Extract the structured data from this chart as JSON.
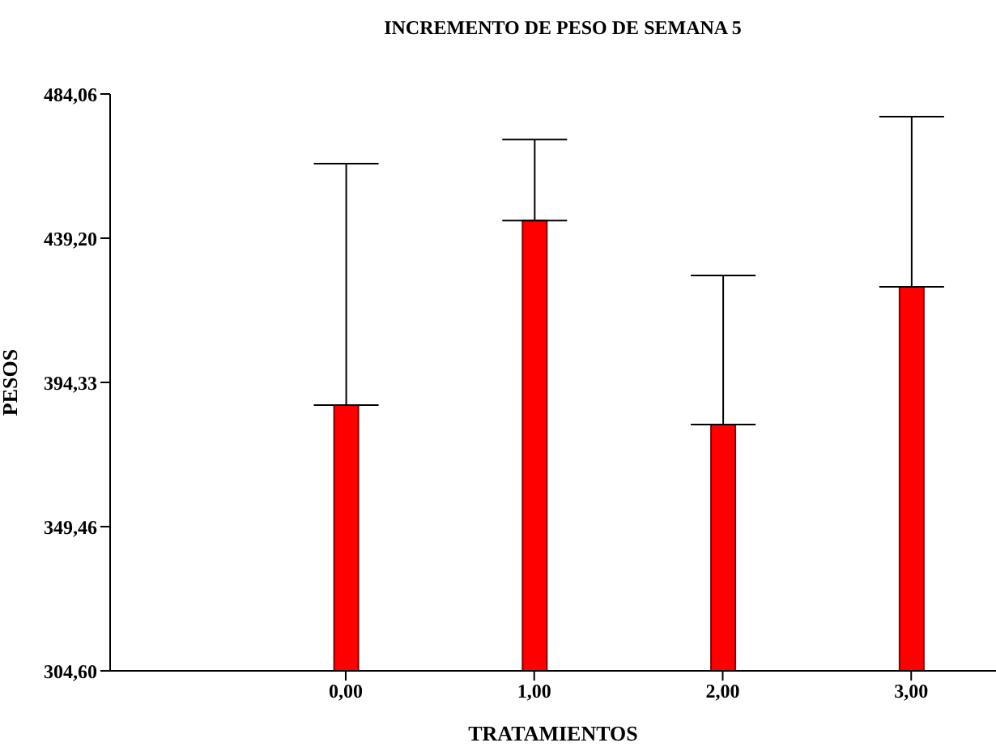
{
  "chart_data": {
    "type": "bar",
    "title": "INCREMENTO DE PESO DE SEMANA 5",
    "xlabel": "TRATAMIENTOS",
    "ylabel": "PESOS",
    "x": [
      0,
      1,
      2,
      3
    ],
    "values": [
      387.3,
      444.7,
      381.2,
      424.1
    ],
    "errors": [
      [
        387.3,
        462.4
      ],
      [
        444.7,
        469.9
      ],
      [
        381.2,
        427.6
      ],
      [
        424.1,
        477.0
      ]
    ],
    "color": "#ff0000",
    "xlim": [
      -1.25,
      3.45
    ],
    "xticks": [
      {
        "value": 0,
        "label": "0,00"
      },
      {
        "value": 1,
        "label": "1,00"
      },
      {
        "value": 2,
        "label": "2,00"
      },
      {
        "value": 3,
        "label": "3,00"
      }
    ],
    "ylim": [
      304.6,
      484.06
    ],
    "yticks": [
      {
        "value": 304.6,
        "label": "304,60"
      },
      {
        "value": 349.46,
        "label": "349,46"
      },
      {
        "value": 394.33,
        "label": "394,33"
      },
      {
        "value": 439.2,
        "label": "439,20"
      },
      {
        "value": 484.06,
        "label": "484,06"
      }
    ],
    "grid": false,
    "legend": false
  }
}
